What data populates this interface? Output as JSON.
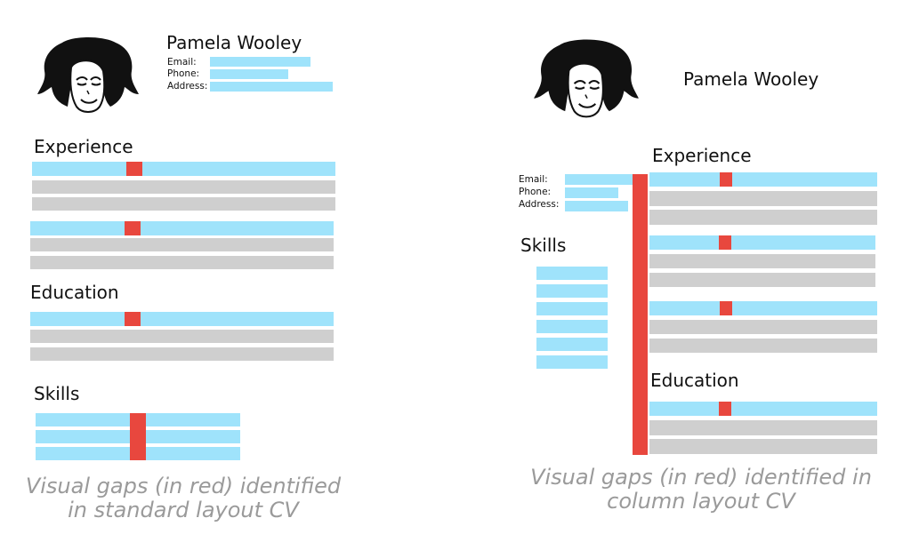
{
  "standard": {
    "name": "Pamela Wooley",
    "contact_labels": [
      "Email:",
      "Phone:",
      "Address:"
    ],
    "sections": [
      "Experience",
      "Education",
      "Skills"
    ],
    "caption_line1": "Visual gaps (in red) identified",
    "caption_line2": "in standard layout CV"
  },
  "column": {
    "name": "Pamela Wooley",
    "contact_labels": [
      "Email:",
      "Phone:",
      "Address:"
    ],
    "sections": [
      "Skills",
      "Experience",
      "Education"
    ],
    "caption_line1": "Visual gaps (in red) identified in",
    "caption_line2": "column layout CV"
  },
  "colors": {
    "text_bar": "#9fe3fb",
    "filler_bar": "#cfcfcf",
    "visual_gap": "#e8473e",
    "caption": "#9a9a9a"
  },
  "icons": [
    "woman-face-icon"
  ]
}
